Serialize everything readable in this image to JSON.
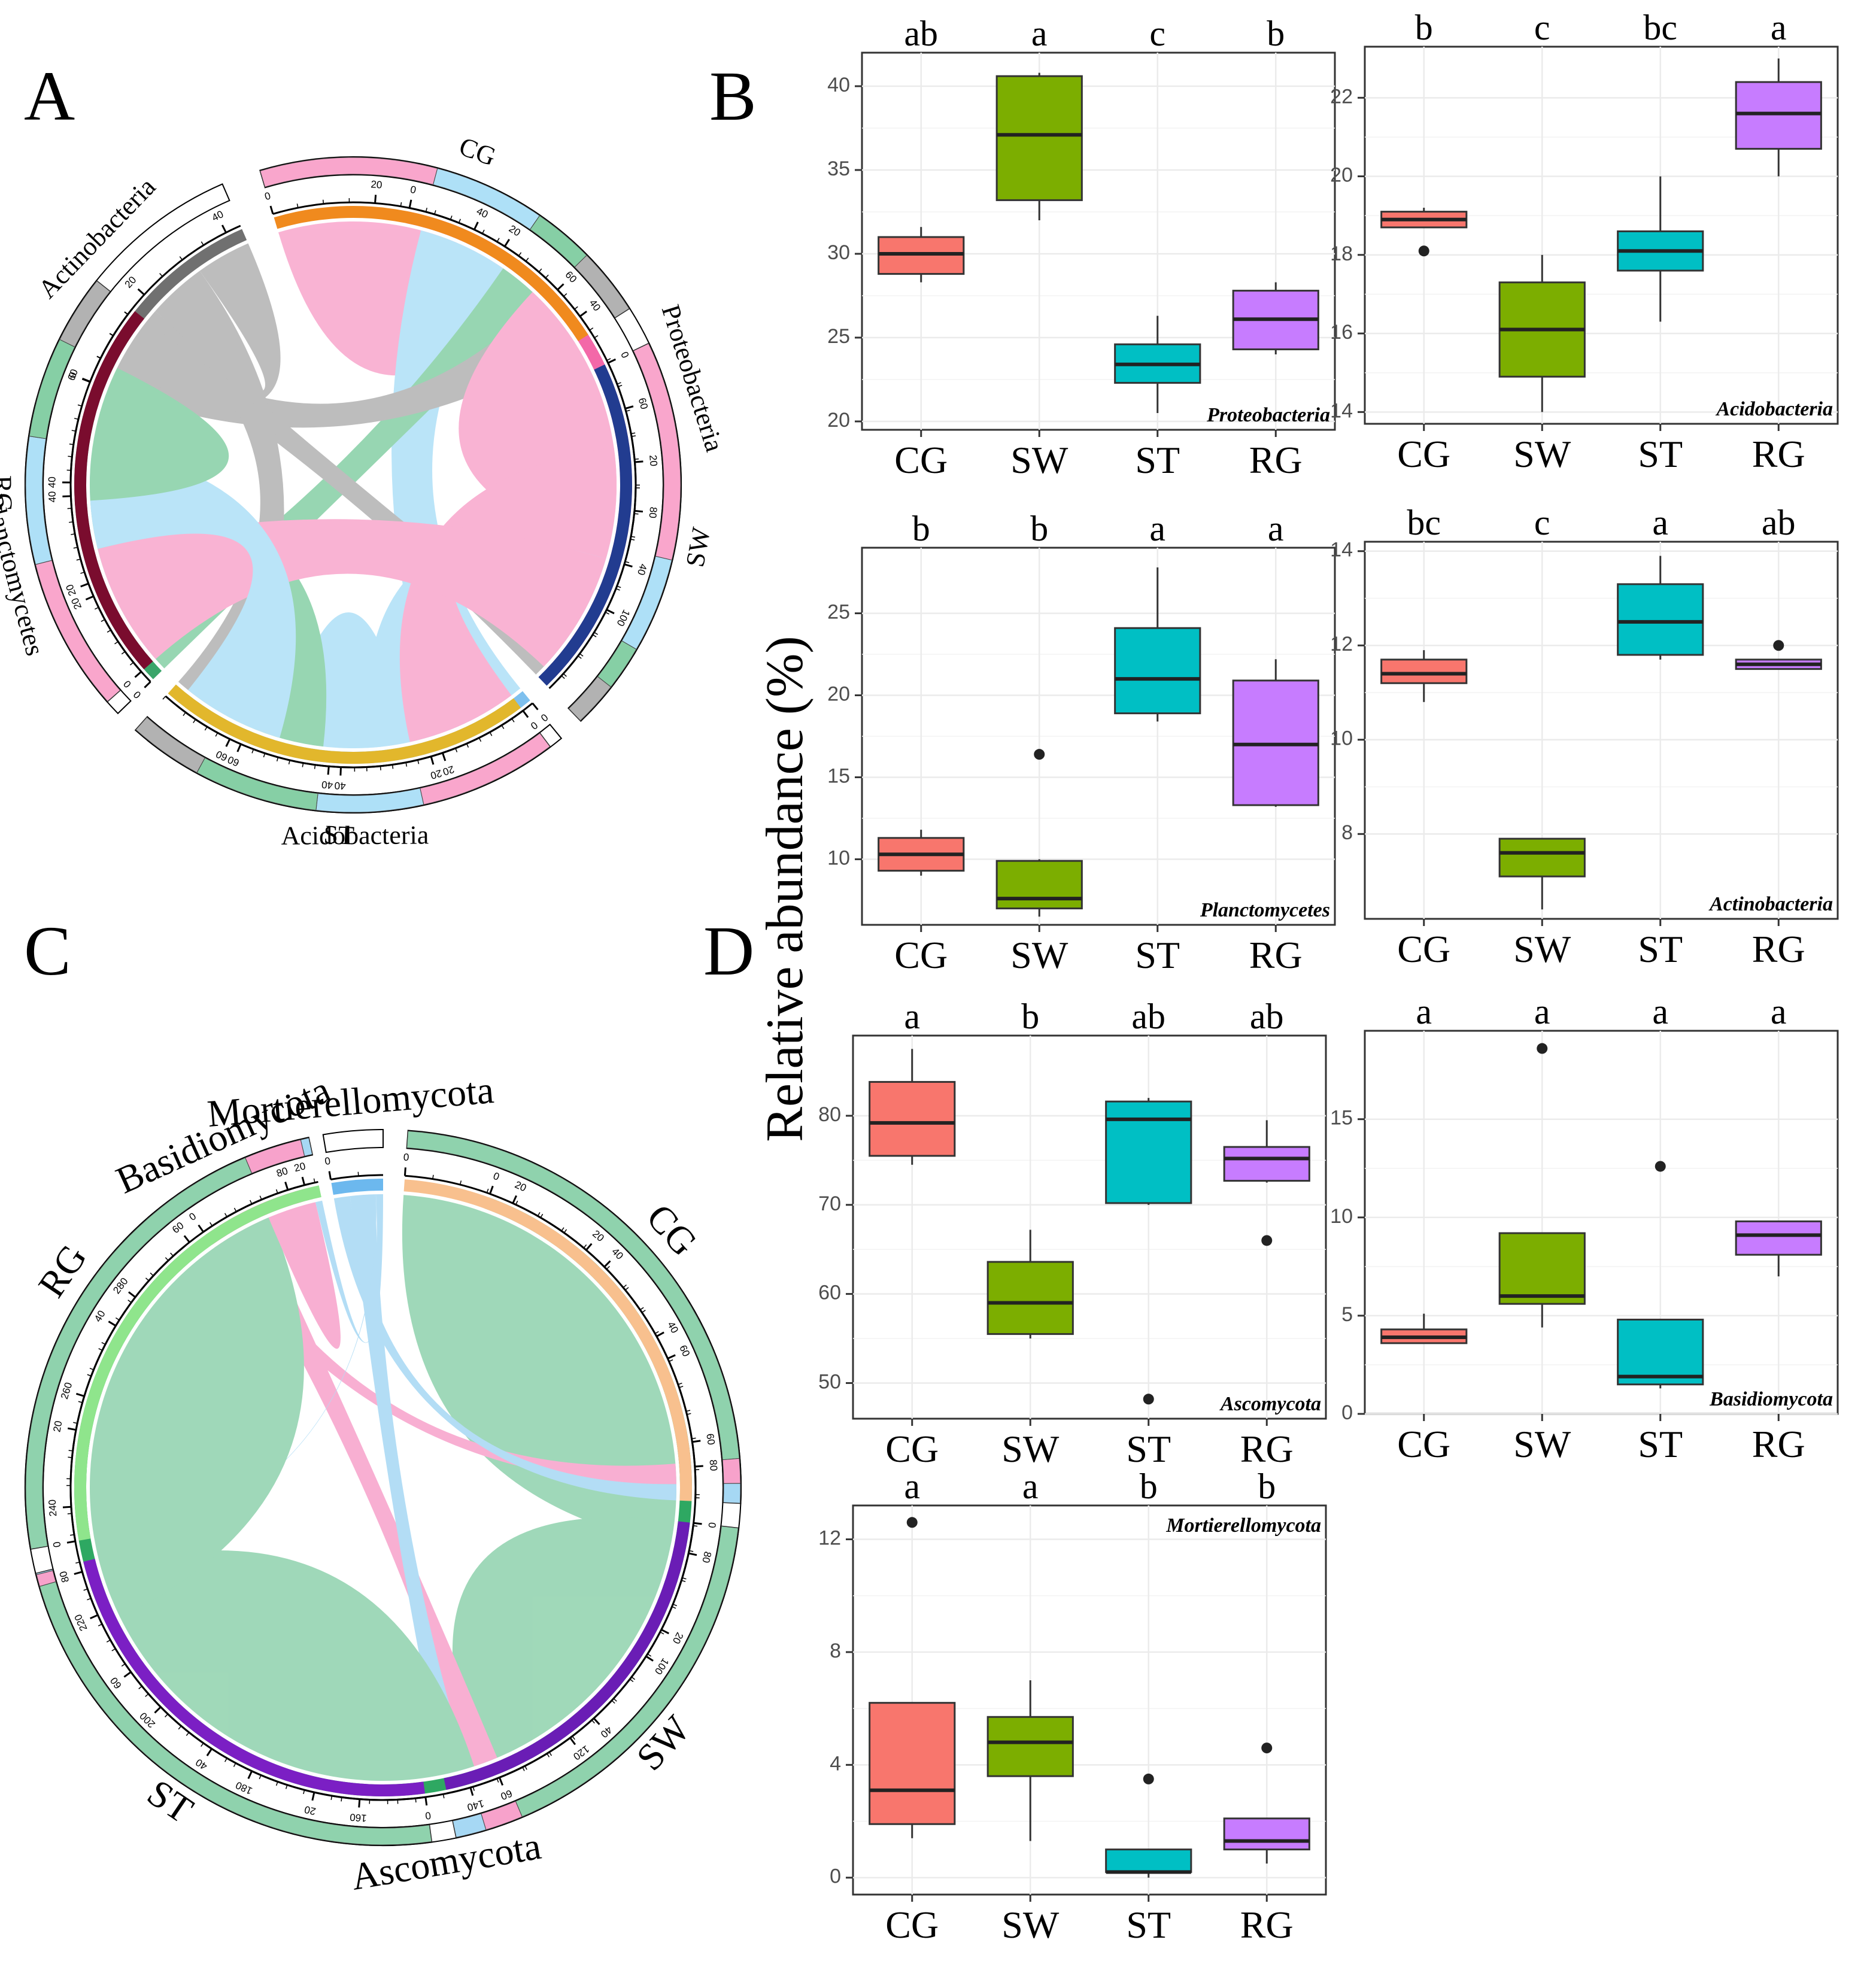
{
  "panel_letters": {
    "a": "A",
    "b": "B",
    "c": "C",
    "d": "D"
  },
  "shared_ylabel": "Relative abundance (%)",
  "colors": {
    "group": [
      "#f8766d",
      "#7cae00",
      "#00bfc4",
      "#c77cff"
    ],
    "chordA_bact": [
      "#f368a8",
      "#7ec0ee",
      "#3aa56a",
      "#707070"
    ],
    "chordA_grp": [
      "#f08a1e",
      "#223c90",
      "#e2b72c",
      "#7a0c2e"
    ],
    "chordA_flow": [
      "#f9a6cc",
      "#aee0f7",
      "#86cfa5",
      "#b2b2b2"
    ],
    "chordC_fung": [
      "#2ea862",
      "#e84696",
      "#6cb8ee"
    ],
    "chordC_grp": [
      "#f8c08e",
      "#6a1db5",
      "#7b1fc4",
      "#8fe58c"
    ],
    "chordC_flow": [
      "#8fd2ad",
      "#f7a2cb",
      "#a6d8f4"
    ]
  },
  "chord_a": {
    "groups": [
      "CG",
      "SW",
      "ST",
      "RG"
    ],
    "phyla": [
      "Proteobacteria",
      "Acidobacteria",
      "Planctomycetes",
      "Actinobacteria"
    ],
    "phylum_ticks": [
      [
        "0",
        "20",
        "40",
        "60",
        "80",
        "100"
      ],
      [
        "0",
        "20",
        "40",
        "60"
      ],
      [
        "0",
        "20",
        "40"
      ],
      [
        "0",
        "20",
        "40"
      ]
    ],
    "group_ticks": [
      [
        "0",
        "20",
        "40",
        "60"
      ],
      [
        "0",
        "20",
        "40"
      ],
      [
        "0",
        "20",
        "40",
        "60"
      ],
      [
        "0",
        "20",
        "40",
        "60"
      ]
    ],
    "flows": [
      [
        30,
        18.9,
        10.3,
        11.4
      ],
      [
        37.1,
        16.1,
        7.6,
        7.6
      ],
      [
        23.4,
        18.1,
        21.0,
        12.5
      ],
      [
        26.1,
        21.6,
        17.0,
        11.6
      ]
    ]
  },
  "chord_c": {
    "groups": [
      "CG",
      "SW",
      "ST",
      "RG"
    ],
    "phyla": [
      "Ascomycota",
      "Basidiomycota",
      "Mortierellomycota"
    ],
    "phylum_ticks": [
      [
        "0",
        "20",
        "40",
        "60",
        "80",
        "100",
        "120",
        "140",
        "160",
        "180",
        "200",
        "220",
        "240",
        "260",
        "280"
      ],
      [
        "0",
        "20"
      ],
      [
        "0"
      ]
    ],
    "group_ticks": [
      [
        "0",
        "20",
        "40",
        "60",
        "80"
      ],
      [
        "0",
        "20",
        "40",
        "60"
      ],
      [
        "0",
        "20",
        "40",
        "60",
        "80"
      ],
      [
        "0",
        "20",
        "40",
        "60",
        "80"
      ]
    ],
    "flows": [
      [
        79.2,
        3.9,
        3.1
      ],
      [
        59.0,
        6.0,
        4.8
      ],
      [
        79.6,
        1.9,
        0.2
      ],
      [
        75.2,
        9.1,
        1.3
      ]
    ]
  },
  "chart_data": [
    {
      "type": "box",
      "title": "Proteobacteria",
      "categories": [
        "CG",
        "SW",
        "ST",
        "RG"
      ],
      "sig_letters": [
        "ab",
        "a",
        "c",
        "b"
      ],
      "ylim": [
        19.5,
        42
      ],
      "yticks": [
        20,
        25,
        30,
        35,
        40
      ],
      "boxes": [
        {
          "q1": 28.8,
          "median": 30.0,
          "q3": 31.0,
          "lo": 28.3,
          "hi": 31.6,
          "outliers": []
        },
        {
          "q1": 33.2,
          "median": 37.1,
          "q3": 40.6,
          "lo": 32.0,
          "hi": 40.8,
          "outliers": []
        },
        {
          "q1": 22.3,
          "median": 23.4,
          "q3": 24.6,
          "lo": 20.5,
          "hi": 26.3,
          "outliers": []
        },
        {
          "q1": 24.3,
          "median": 26.1,
          "q3": 27.8,
          "lo": 24.0,
          "hi": 28.3,
          "outliers": []
        }
      ]
    },
    {
      "type": "box",
      "title": "Acidobacteria",
      "categories": [
        "CG",
        "SW",
        "ST",
        "RG"
      ],
      "sig_letters": [
        "b",
        "c",
        "bc",
        "a"
      ],
      "ylim": [
        13.7,
        23.3
      ],
      "yticks": [
        14,
        16,
        18,
        20,
        22
      ],
      "boxes": [
        {
          "q1": 18.7,
          "median": 18.9,
          "q3": 19.1,
          "lo": 18.7,
          "hi": 19.2,
          "outliers": [
            18.1
          ]
        },
        {
          "q1": 14.9,
          "median": 16.1,
          "q3": 17.3,
          "lo": 14.0,
          "hi": 18.0,
          "outliers": []
        },
        {
          "q1": 17.6,
          "median": 18.1,
          "q3": 18.6,
          "lo": 16.3,
          "hi": 20.0,
          "outliers": []
        },
        {
          "q1": 20.7,
          "median": 21.6,
          "q3": 22.4,
          "lo": 20.0,
          "hi": 23.0,
          "outliers": []
        }
      ]
    },
    {
      "type": "box",
      "title": "Planctomycetes",
      "categories": [
        "CG",
        "SW",
        "ST",
        "RG"
      ],
      "sig_letters": [
        "b",
        "b",
        "a",
        "a"
      ],
      "ylim": [
        6,
        29
      ],
      "yticks": [
        10,
        15,
        20,
        25
      ],
      "boxes": [
        {
          "q1": 9.3,
          "median": 10.3,
          "q3": 11.3,
          "lo": 9.0,
          "hi": 11.8,
          "outliers": []
        },
        {
          "q1": 7.0,
          "median": 7.6,
          "q3": 9.9,
          "lo": 6.5,
          "hi": 10.0,
          "outliers": [
            16.4
          ]
        },
        {
          "q1": 18.9,
          "median": 21.0,
          "q3": 24.1,
          "lo": 18.4,
          "hi": 27.8,
          "outliers": []
        },
        {
          "q1": 13.3,
          "median": 17.0,
          "q3": 20.9,
          "lo": 13.2,
          "hi": 22.2,
          "outliers": []
        }
      ]
    },
    {
      "type": "box",
      "title": "Actinobacteria",
      "categories": [
        "CG",
        "SW",
        "ST",
        "RG"
      ],
      "sig_letters": [
        "bc",
        "c",
        "a",
        "ab"
      ],
      "ylim": [
        6.2,
        14.2
      ],
      "yticks": [
        8,
        10,
        12,
        14
      ],
      "boxes": [
        {
          "q1": 11.2,
          "median": 11.4,
          "q3": 11.7,
          "lo": 10.8,
          "hi": 11.9,
          "outliers": []
        },
        {
          "q1": 7.1,
          "median": 7.6,
          "q3": 7.9,
          "lo": 6.4,
          "hi": 7.9,
          "outliers": []
        },
        {
          "q1": 11.8,
          "median": 12.5,
          "q3": 13.3,
          "lo": 11.7,
          "hi": 13.9,
          "outliers": []
        },
        {
          "q1": 11.5,
          "median": 11.6,
          "q3": 11.7,
          "lo": 11.5,
          "hi": 11.7,
          "outliers": [
            12.0
          ]
        }
      ]
    },
    {
      "type": "box",
      "title": "Ascomycota",
      "categories": [
        "CG",
        "SW",
        "ST",
        "RG"
      ],
      "sig_letters": [
        "a",
        "b",
        "ab",
        "ab"
      ],
      "ylim": [
        46,
        89
      ],
      "yticks": [
        50,
        60,
        70,
        80
      ],
      "boxes": [
        {
          "q1": 75.5,
          "median": 79.2,
          "q3": 83.8,
          "lo": 74.5,
          "hi": 87.5,
          "outliers": []
        },
        {
          "q1": 55.5,
          "median": 59.0,
          "q3": 63.6,
          "lo": 55.0,
          "hi": 67.2,
          "outliers": []
        },
        {
          "q1": 70.2,
          "median": 79.6,
          "q3": 81.6,
          "lo": 70.0,
          "hi": 82.0,
          "outliers": [
            48.2
          ]
        },
        {
          "q1": 72.7,
          "median": 75.2,
          "q3": 76.5,
          "lo": 72.5,
          "hi": 79.5,
          "outliers": [
            66.0
          ]
        }
      ]
    },
    {
      "type": "box",
      "title": "Basidiomycota",
      "categories": [
        "CG",
        "SW",
        "ST",
        "RG"
      ],
      "sig_letters": [
        "a",
        "a",
        "a",
        "a"
      ],
      "ylim": [
        0,
        19.5
      ],
      "yticks": [
        0,
        5,
        10,
        15
      ],
      "boxes": [
        {
          "q1": 3.6,
          "median": 3.9,
          "q3": 4.3,
          "lo": 3.6,
          "hi": 5.1,
          "outliers": []
        },
        {
          "q1": 5.6,
          "median": 6.0,
          "q3": 9.2,
          "lo": 4.4,
          "hi": 9.2,
          "outliers": [
            18.6
          ]
        },
        {
          "q1": 1.5,
          "median": 1.9,
          "q3": 4.8,
          "lo": 1.3,
          "hi": 4.8,
          "outliers": [
            12.6
          ]
        },
        {
          "q1": 8.1,
          "median": 9.1,
          "q3": 9.8,
          "lo": 7.0,
          "hi": 9.8,
          "outliers": []
        }
      ]
    },
    {
      "type": "box",
      "title": "Mortierellomycota",
      "categories": [
        "CG",
        "SW",
        "ST",
        "RG"
      ],
      "sig_letters": [
        "a",
        "a",
        "b",
        "b"
      ],
      "ylim": [
        -0.6,
        13.2
      ],
      "yticks": [
        0,
        4,
        8,
        12
      ],
      "boxes": [
        {
          "q1": 1.9,
          "median": 3.1,
          "q3": 6.2,
          "lo": 1.4,
          "hi": 6.2,
          "outliers": [
            12.6
          ]
        },
        {
          "q1": 3.6,
          "median": 4.8,
          "q3": 5.7,
          "lo": 1.3,
          "hi": 7.0,
          "outliers": []
        },
        {
          "q1": 0.2,
          "median": 0.2,
          "q3": 1.0,
          "lo": 0.0,
          "hi": 1.0,
          "outliers": [
            3.5
          ]
        },
        {
          "q1": 1.0,
          "median": 1.3,
          "q3": 2.1,
          "lo": 0.5,
          "hi": 2.1,
          "outliers": [
            4.6
          ]
        }
      ]
    }
  ]
}
